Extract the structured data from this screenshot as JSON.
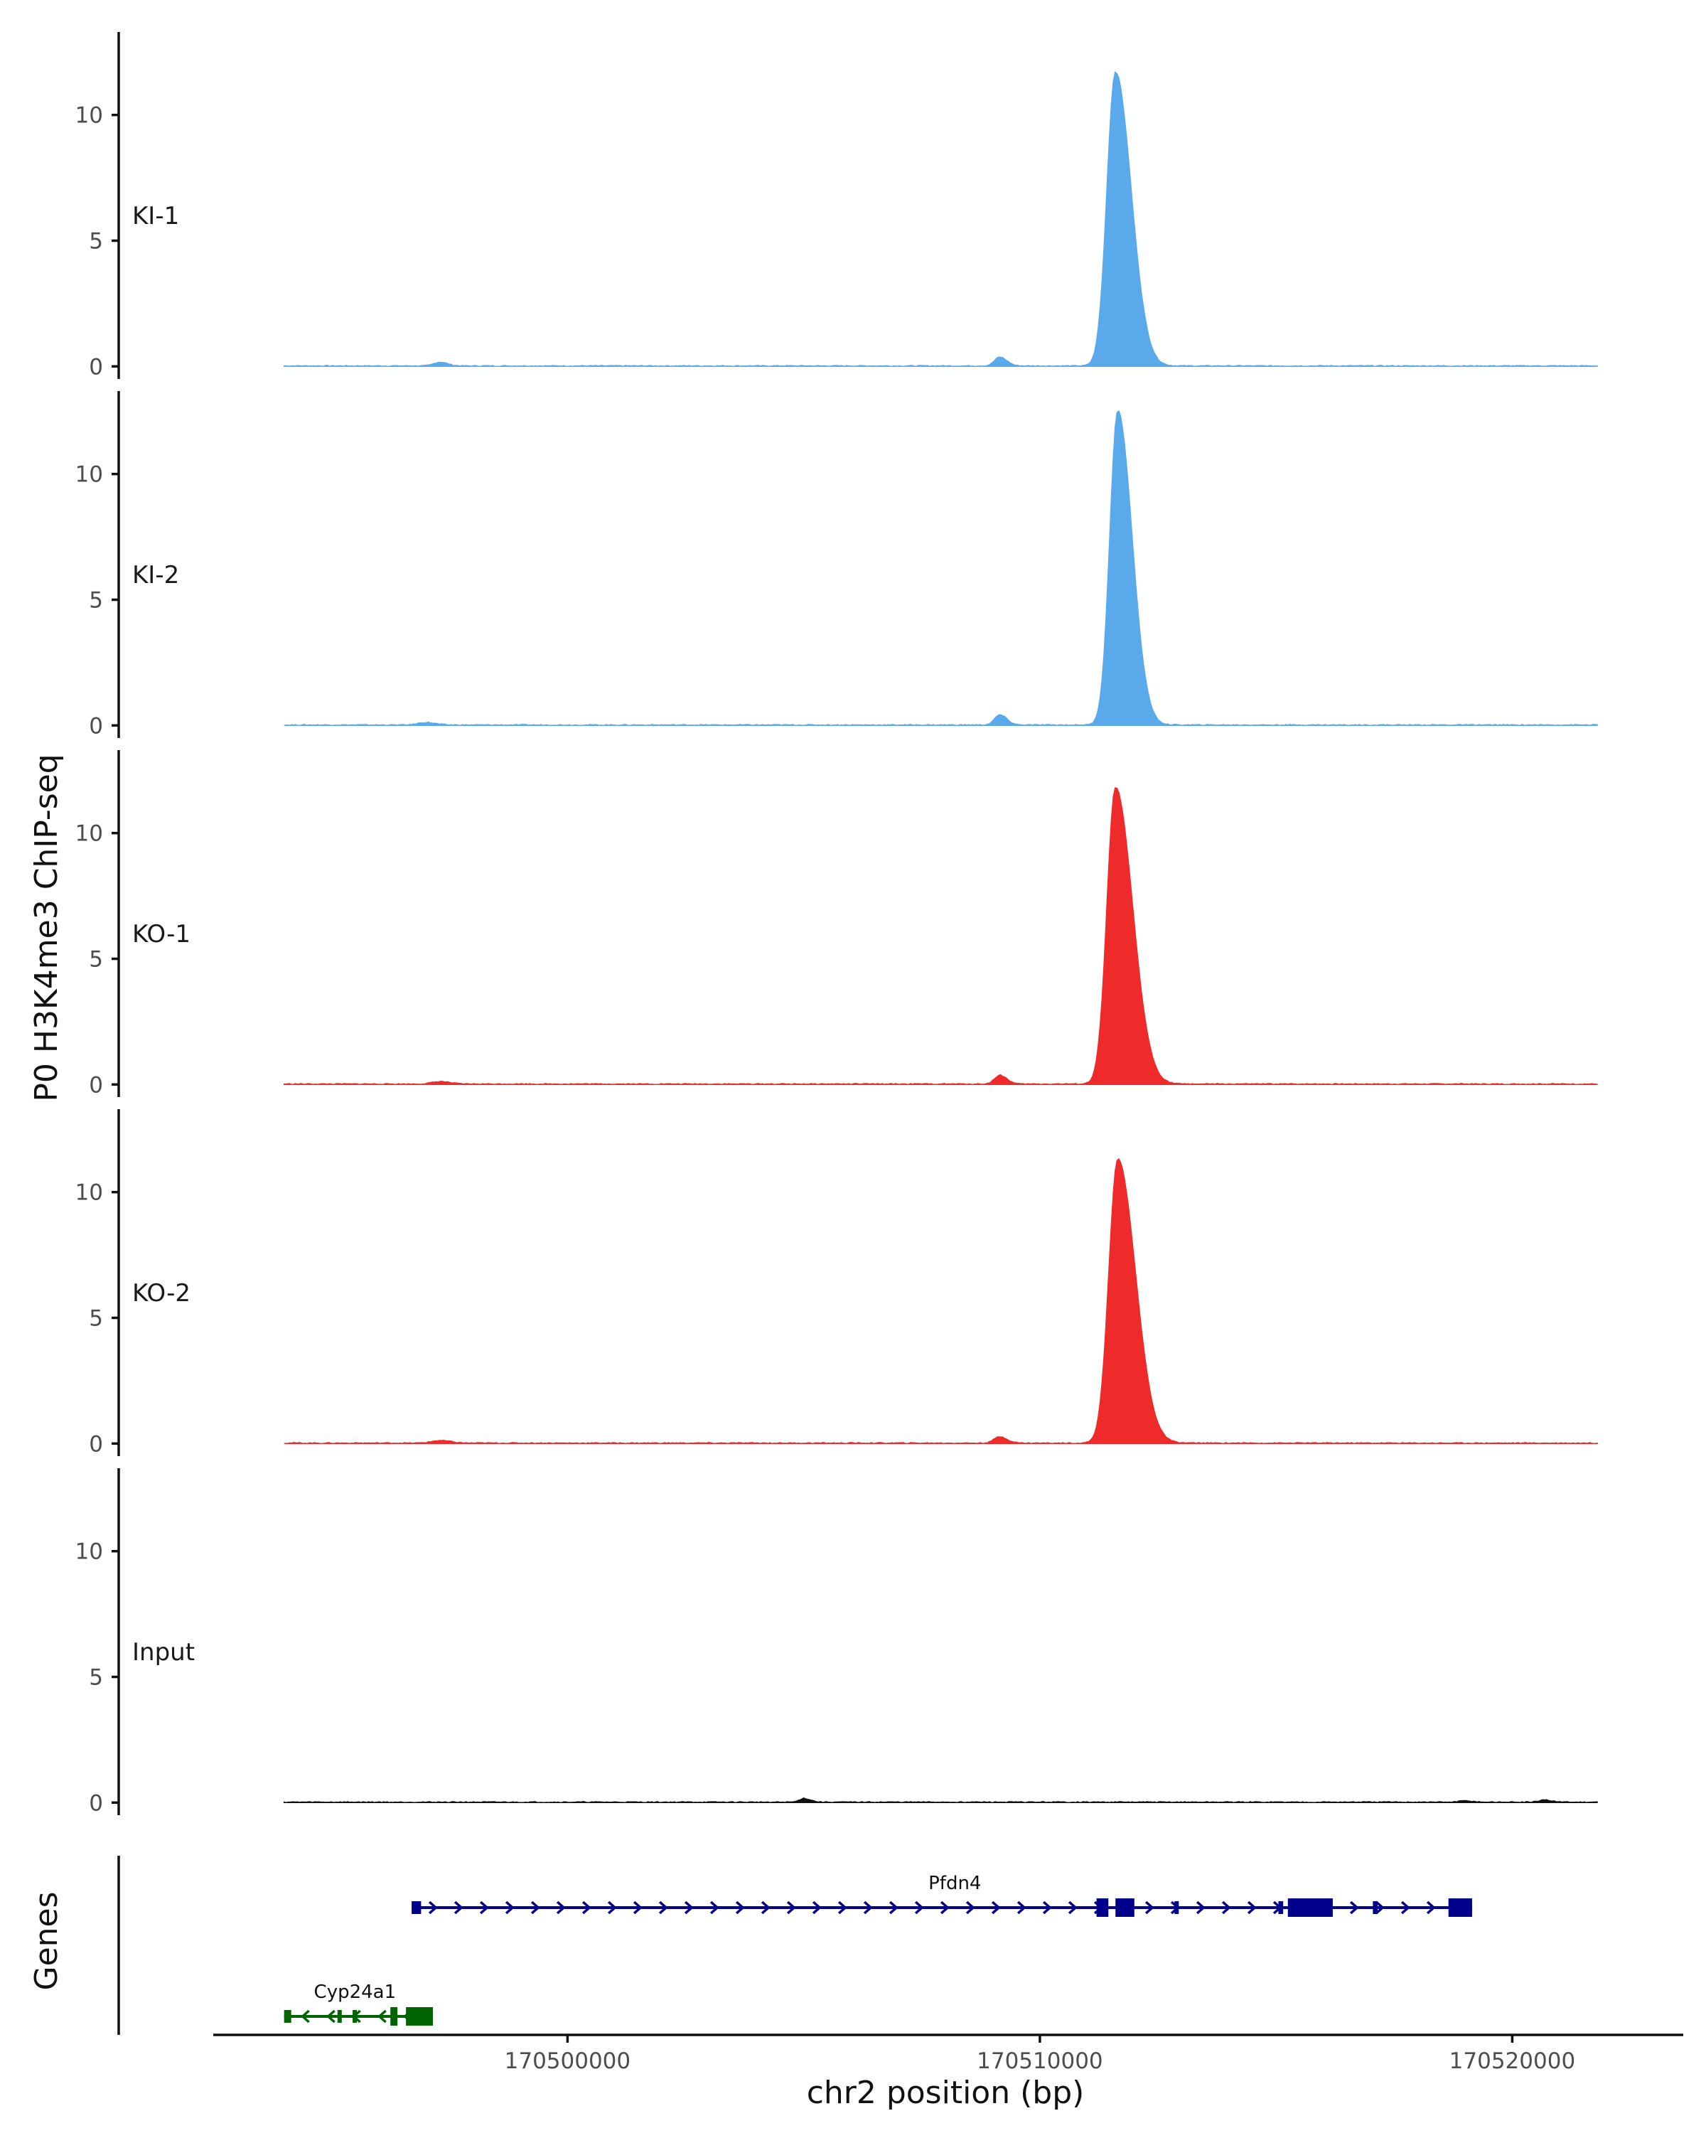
{
  "chart_data": {
    "type": "area",
    "title": "",
    "ylabel": "P0 H3K4me3 ChIP-seq",
    "xlabel": "chr2 position (bp)",
    "genes_label": "Genes",
    "xlim": [
      170492500,
      170523500
    ],
    "signal_x_range": [
      170494000,
      170521800
    ],
    "ylim": [
      -0.5,
      13.3
    ],
    "yticks": [
      0,
      5,
      10
    ],
    "ytick_labels": [
      "0",
      "5",
      "10"
    ],
    "xticks": [
      170500000,
      170510000,
      170520000
    ],
    "xtick_labels": [
      "170500000",
      "170510000",
      "170520000"
    ],
    "colors": {
      "KI": "#5aa9ea",
      "KO": "#ee2a2a",
      "Input": "#111111",
      "gene_plus": "#00008b",
      "gene_minus": "#006400"
    },
    "tracks": [
      {
        "name": "KI-1",
        "color": "#5aa9ea",
        "peaks": [
          {
            "center": 170511600,
            "height": 11.7,
            "left_width": 180,
            "right_width": 330
          },
          {
            "center": 170509150,
            "height": 0.35,
            "left_width": 110,
            "right_width": 150
          },
          {
            "center": 170497300,
            "height": 0.15,
            "left_width": 130,
            "right_width": 160
          }
        ]
      },
      {
        "name": "KI-2",
        "color": "#5aa9ea",
        "peaks": [
          {
            "center": 170511650,
            "height": 12.5,
            "left_width": 170,
            "right_width": 300
          },
          {
            "center": 170509150,
            "height": 0.4,
            "left_width": 110,
            "right_width": 150
          },
          {
            "center": 170497000,
            "height": 0.1,
            "left_width": 160,
            "right_width": 200
          }
        ]
      },
      {
        "name": "KO-1",
        "color": "#ee2a2a",
        "peaks": [
          {
            "center": 170511600,
            "height": 11.8,
            "left_width": 180,
            "right_width": 360
          },
          {
            "center": 170509150,
            "height": 0.35,
            "left_width": 110,
            "right_width": 150
          },
          {
            "center": 170497300,
            "height": 0.1,
            "left_width": 160,
            "right_width": 200
          }
        ]
      },
      {
        "name": "KO-2",
        "color": "#ee2a2a",
        "peaks": [
          {
            "center": 170511650,
            "height": 11.3,
            "left_width": 190,
            "right_width": 370
          },
          {
            "center": 170509150,
            "height": 0.25,
            "left_width": 120,
            "right_width": 160
          },
          {
            "center": 170497300,
            "height": 0.1,
            "left_width": 180,
            "right_width": 220
          }
        ]
      },
      {
        "name": "Input",
        "color": "#111111",
        "peaks": [
          {
            "center": 170505000,
            "height": 0.15,
            "left_width": 90,
            "right_width": 140
          },
          {
            "center": 170520700,
            "height": 0.08,
            "left_width": 120,
            "right_width": 160
          },
          {
            "center": 170519000,
            "height": 0.05,
            "left_width": 120,
            "right_width": 160
          }
        ]
      }
    ],
    "genes": [
      {
        "name": "Pfdn4",
        "strand": "+",
        "start": 170496700,
        "end": 170519150,
        "color": "#00008b",
        "exons": [
          {
            "start": 170496700,
            "end": 170496900,
            "utr": true
          },
          {
            "start": 170511200,
            "end": 170511450
          },
          {
            "start": 170511600,
            "end": 170512000
          },
          {
            "start": 170512850,
            "end": 170512910,
            "utr": true
          },
          {
            "start": 170515050,
            "end": 170515150,
            "utr": true
          },
          {
            "start": 170515250,
            "end": 170516200
          },
          {
            "start": 170517050,
            "end": 170517150,
            "utr": true
          },
          {
            "start": 170518650,
            "end": 170519150
          }
        ]
      },
      {
        "name": "Cyp24a1",
        "strand": "-",
        "start": 170494000,
        "end": 170496900,
        "color": "#006400",
        "exons": [
          {
            "start": 170494000,
            "end": 170494150,
            "utr": true
          },
          {
            "start": 170495130,
            "end": 170495200,
            "utr": true
          },
          {
            "start": 170495450,
            "end": 170495520,
            "utr": true
          },
          {
            "start": 170496250,
            "end": 170496400
          },
          {
            "start": 170496580,
            "end": 170497150
          }
        ]
      }
    ]
  }
}
